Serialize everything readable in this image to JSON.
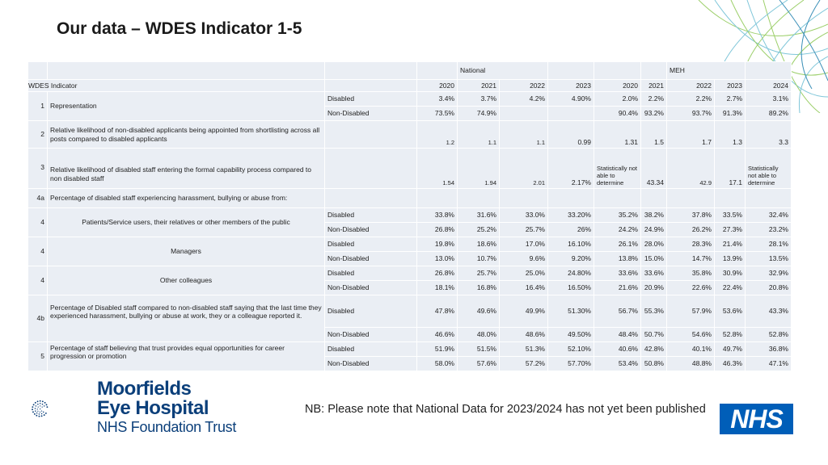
{
  "title": "Our data – WDES Indicator 1-5",
  "header": {
    "national": "National",
    "meh": "MEH",
    "indicator_label": "WDES Indicator",
    "years": [
      "2020",
      "2021",
      "2022",
      "2023",
      "2020",
      "2021",
      "2022",
      "2023",
      "2024"
    ]
  },
  "rows": [
    {
      "num": "1",
      "label": "Representation",
      "group": [
        {
          "cat": "Disabled",
          "vals": [
            "3.4%",
            "3.7%",
            "4.2%",
            "4.90%",
            "2.0%",
            "2.2%",
            "2.2%",
            "2.7%",
            "3.1%"
          ]
        },
        {
          "cat": "Non-Disabled",
          "vals": [
            "73.5%",
            "74.9%",
            "",
            "",
            "90.4%",
            "93.2%",
            "93.7%",
            "91.3%",
            "89.2%"
          ]
        }
      ]
    },
    {
      "num": "2",
      "label": "Relative likelihood of non-disabled applicants being appointed from shortlisting across all posts compared to disabled applicants",
      "vals": [
        "1.2",
        "1.1",
        "1.1",
        "0.99",
        "1.31",
        "1.5",
        "1.7",
        "1.3",
        "3.3"
      ]
    },
    {
      "num": "3",
      "label": "Relative likelihood of disabled staff entering the formal capability process compared to non disabled staff",
      "vals": [
        "1.54",
        "1.94",
        "2.01",
        "2.17%",
        "Statistically not able to determine",
        "43.34",
        "42.9",
        "17.1",
        "Statistically not able to determine"
      ]
    },
    {
      "num": "4a",
      "label": "Percentage of disabled staff experiencing harassment, bullying or abuse from:"
    },
    {
      "num": "4",
      "label": "Patients/Service users, their relatives or other members of the public",
      "group": [
        {
          "cat": "Disabled",
          "vals": [
            "33.8%",
            "31.6%",
            "33.0%",
            "33.20%",
            "35.2%",
            "38.2%",
            "37.8%",
            "33.5%",
            "32.4%"
          ]
        },
        {
          "cat": "Non-Disabled",
          "vals": [
            "26.8%",
            "25.2%",
            "25.7%",
            "26%",
            "24.2%",
            "24.9%",
            "26.2%",
            "27.3%",
            "23.2%"
          ]
        }
      ]
    },
    {
      "num": "4",
      "label": "Managers",
      "group": [
        {
          "cat": "Disabled",
          "vals": [
            "19.8%",
            "18.6%",
            "17.0%",
            "16.10%",
            "26.1%",
            "28.0%",
            "28.3%",
            "21.4%",
            "28.1%"
          ]
        },
        {
          "cat": "Non-Disabled",
          "vals": [
            "13.0%",
            "10.7%",
            "9.6%",
            "9.20%",
            "13.8%",
            "15.0%",
            "14.7%",
            "13.9%",
            "13.5%"
          ]
        }
      ]
    },
    {
      "num": "4",
      "label": "Other colleagues",
      "group": [
        {
          "cat": "Disabled",
          "vals": [
            "26.8%",
            "25.7%",
            "25.0%",
            "24.80%",
            "33.6%",
            "33.6%",
            "35.8%",
            "30.9%",
            "32.9%"
          ]
        },
        {
          "cat": "Non-Disabled",
          "vals": [
            "18.1%",
            "16.8%",
            "16.4%",
            "16.50%",
            "21.6%",
            "20.9%",
            "22.6%",
            "22.4%",
            "20.8%"
          ]
        }
      ]
    },
    {
      "num": "4b",
      "label": "Percentage of Disabled staff compared to non-disabled staff saying that the last time they experienced harassment, bullying or abuse at work, they or a colleague reported it.",
      "group": [
        {
          "cat": "Disabled",
          "vals": [
            "47.8%",
            "49.6%",
            "49.9%",
            "51.30%",
            "56.7%",
            "55.3%",
            "57.9%",
            "53.6%",
            "43.3%"
          ]
        },
        {
          "cat": "Non-Disabled",
          "vals": [
            "46.6%",
            "48.0%",
            "48.6%",
            "49.50%",
            "48.4%",
            "50.7%",
            "54.6%",
            "52.8%",
            "52.8%"
          ]
        }
      ]
    },
    {
      "num": "5",
      "label": "Percentage of staff believing that trust provides equal opportunities for career progression or promotion",
      "group": [
        {
          "cat": "Disabled",
          "vals": [
            "51.9%",
            "51.5%",
            "51.3%",
            "52.10%",
            "40.6%",
            "42.8%",
            "40.1%",
            "49.7%",
            "36.8%"
          ]
        },
        {
          "cat": "Non-Disabled",
          "vals": [
            "58.0%",
            "57.6%",
            "57.2%",
            "57.70%",
            "53.4%",
            "50.8%",
            "48.8%",
            "46.3%",
            "47.1%"
          ]
        }
      ]
    }
  ],
  "logo": {
    "line1": "Moorfields",
    "line2": "Eye Hospital",
    "line3": "NHS Foundation Trust"
  },
  "note": "NB: Please note that National Data for 2023/2024 has not yet been published",
  "nhs_logo": "NHS",
  "colors": {
    "table_bg": "#eaeef4",
    "nhs_blue": "#005eb8",
    "logo_navy": "#0b3f7a"
  }
}
